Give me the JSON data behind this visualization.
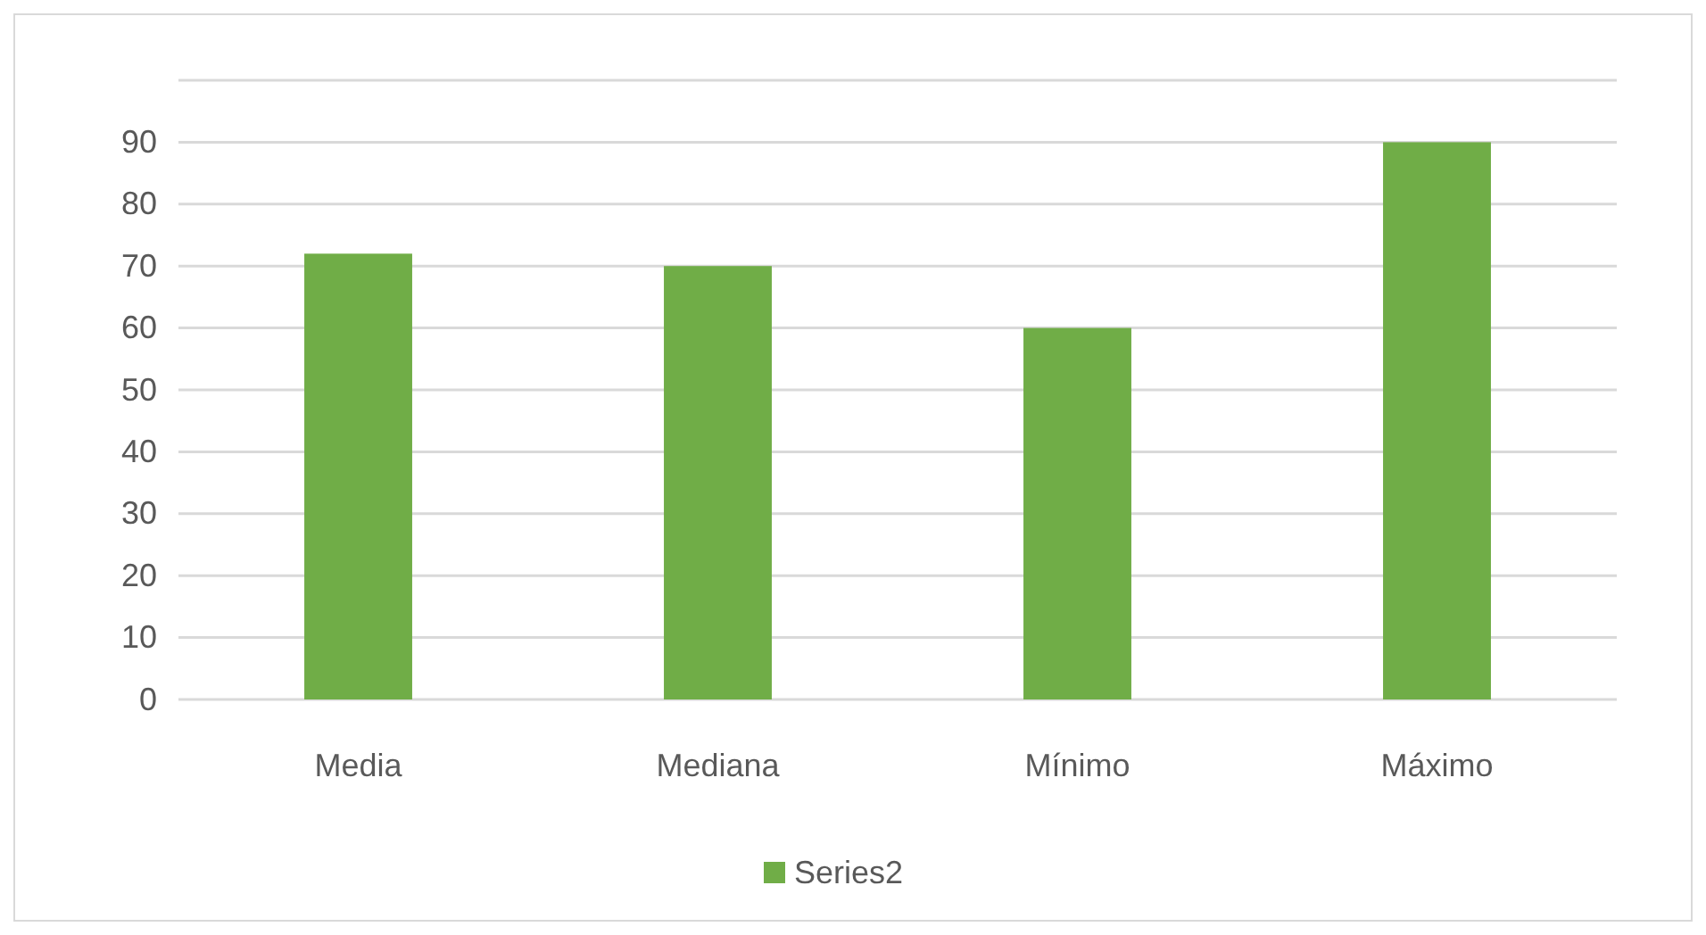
{
  "chart_data": {
    "type": "bar",
    "categories": [
      "Media",
      "Mediana",
      "Mínimo",
      "Máximo"
    ],
    "series": [
      {
        "name": "Series2",
        "color": "#70ad47",
        "values": [
          72,
          70,
          60,
          90
        ]
      }
    ],
    "ylim": [
      0,
      100
    ],
    "yticks": [
      0,
      10,
      20,
      30,
      40,
      50,
      60,
      70,
      80,
      90,
      {
        "value": 100,
        "label": null
      }
    ],
    "grid": "y",
    "legend": "bottom"
  }
}
